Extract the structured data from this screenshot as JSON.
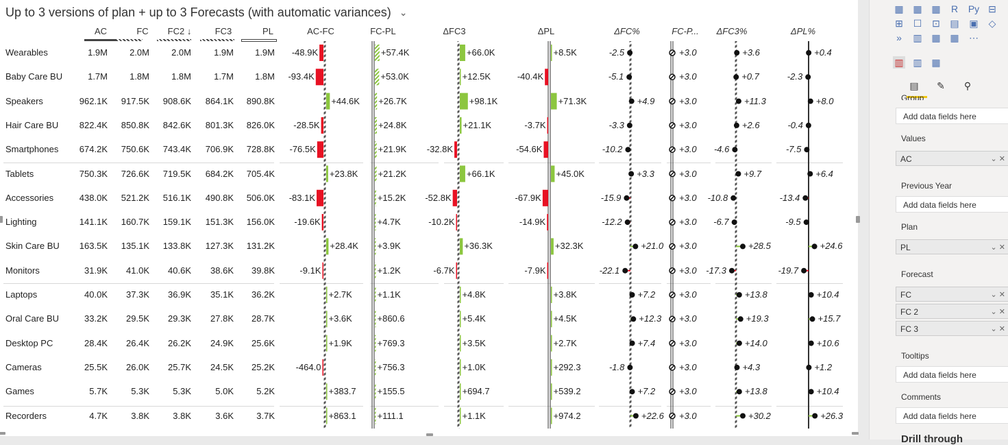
{
  "title": "Up to 3 versions of plan + up to 3 Forecasts (with automatic variances)",
  "columns": {
    "ac": "AC",
    "fc": "FC",
    "fc2": "FC2 ↓",
    "fc3": "FC3",
    "pl": "PL",
    "ac_fc": "AC-FC",
    "fc_pl": "FC-PL",
    "d_fc3": "ΔFC3",
    "d_pl": "ΔPL",
    "d_fc_pct": "ΔFC%",
    "fc_p": "FC-P...",
    "d_fc3_pct": "ΔFC3%",
    "d_pl_pct": "ΔPL%"
  },
  "colors": {
    "positive": "#8cc63f",
    "negative": "#e81123",
    "text": "#222222"
  },
  "rows": [
    {
      "name": "Wearables",
      "ac": "1.9M",
      "fc": "2.0M",
      "fc2": "2.0M",
      "fc3": "1.9M",
      "pl": "1.9M",
      "ac_fc": "-48.9K",
      "ac_fc_v": -48.9,
      "fc_pl": "+57.4K",
      "fc_pl_v": 57.4,
      "d_fc3": "+66.0K",
      "d_fc3_v": 66.0,
      "d_pl": "+8.5K",
      "d_pl_v": 8.5,
      "d_fc_pct": "-2.5",
      "d_fc_pct_v": -2.5,
      "fc_p": "+3.0",
      "d_fc3_pct": "+3.6",
      "d_fc3_pct_v": 3.6,
      "d_pl_pct": "+0.4",
      "d_pl_pct_v": 0.4
    },
    {
      "name": "Baby Care BU",
      "ac": "1.7M",
      "fc": "1.8M",
      "fc2": "1.8M",
      "fc3": "1.7M",
      "pl": "1.8M",
      "ac_fc": "-93.4K",
      "ac_fc_v": -93.4,
      "fc_pl": "+53.0K",
      "fc_pl_v": 53.0,
      "d_fc3": "+12.5K",
      "d_fc3_v": 12.5,
      "d_pl": "-40.4K",
      "d_pl_v": -40.4,
      "d_fc_pct": "-5.1",
      "d_fc_pct_v": -5.1,
      "fc_p": "+3.0",
      "d_fc3_pct": "+0.7",
      "d_fc3_pct_v": 0.7,
      "d_pl_pct": "-2.3",
      "d_pl_pct_v": -2.3
    },
    {
      "name": "Speakers",
      "ac": "962.1K",
      "fc": "917.5K",
      "fc2": "908.6K",
      "fc3": "864.1K",
      "pl": "890.8K",
      "ac_fc": "+44.6K",
      "ac_fc_v": 44.6,
      "fc_pl": "+26.7K",
      "fc_pl_v": 26.7,
      "d_fc3": "+98.1K",
      "d_fc3_v": 98.1,
      "d_pl": "+71.3K",
      "d_pl_v": 71.3,
      "d_fc_pct": "+4.9",
      "d_fc_pct_v": 4.9,
      "fc_p": "+3.0",
      "d_fc3_pct": "+11.3",
      "d_fc3_pct_v": 11.3,
      "d_pl_pct": "+8.0",
      "d_pl_pct_v": 8.0
    },
    {
      "name": "Hair Care BU",
      "ac": "822.4K",
      "fc": "850.8K",
      "fc2": "842.6K",
      "fc3": "801.3K",
      "pl": "826.0K",
      "ac_fc": "-28.5K",
      "ac_fc_v": -28.5,
      "fc_pl": "+24.8K",
      "fc_pl_v": 24.8,
      "d_fc3": "+21.1K",
      "d_fc3_v": 21.1,
      "d_pl": "-3.7K",
      "d_pl_v": -3.7,
      "d_fc_pct": "-3.3",
      "d_fc_pct_v": -3.3,
      "fc_p": "+3.0",
      "d_fc3_pct": "+2.6",
      "d_fc3_pct_v": 2.6,
      "d_pl_pct": "-0.4",
      "d_pl_pct_v": -0.4
    },
    {
      "name": "Smartphones",
      "ac": "674.2K",
      "fc": "750.6K",
      "fc2": "743.4K",
      "fc3": "706.9K",
      "pl": "728.8K",
      "ac_fc": "-76.5K",
      "ac_fc_v": -76.5,
      "fc_pl": "+21.9K",
      "fc_pl_v": 21.9,
      "d_fc3": "-32.8K",
      "d_fc3_v": -32.8,
      "d_pl": "-54.6K",
      "d_pl_v": -54.6,
      "d_fc_pct": "-10.2",
      "d_fc_pct_v": -10.2,
      "fc_p": "+3.0",
      "d_fc3_pct": "-4.6",
      "d_fc3_pct_v": -4.6,
      "d_pl_pct": "-7.5",
      "d_pl_pct_v": -7.5
    },
    {
      "name": "Tablets",
      "ac": "750.3K",
      "fc": "726.6K",
      "fc2": "719.5K",
      "fc3": "684.2K",
      "pl": "705.4K",
      "ac_fc": "+23.8K",
      "ac_fc_v": 23.8,
      "fc_pl": "+21.2K",
      "fc_pl_v": 21.2,
      "d_fc3": "+66.1K",
      "d_fc3_v": 66.1,
      "d_pl": "+45.0K",
      "d_pl_v": 45.0,
      "d_fc_pct": "+3.3",
      "d_fc_pct_v": 3.3,
      "fc_p": "+3.0",
      "d_fc3_pct": "+9.7",
      "d_fc3_pct_v": 9.7,
      "d_pl_pct": "+6.4",
      "d_pl_pct_v": 6.4
    },
    {
      "name": "Accessories",
      "ac": "438.0K",
      "fc": "521.2K",
      "fc2": "516.1K",
      "fc3": "490.8K",
      "pl": "506.0K",
      "ac_fc": "-83.1K",
      "ac_fc_v": -83.1,
      "fc_pl": "+15.2K",
      "fc_pl_v": 15.2,
      "d_fc3": "-52.8K",
      "d_fc3_v": -52.8,
      "d_pl": "-67.9K",
      "d_pl_v": -67.9,
      "d_fc_pct": "-15.9",
      "d_fc_pct_v": -15.9,
      "fc_p": "+3.0",
      "d_fc3_pct": "-10.8",
      "d_fc3_pct_v": -10.8,
      "d_pl_pct": "-13.4",
      "d_pl_pct_v": -13.4
    },
    {
      "name": "Lighting",
      "ac": "141.1K",
      "fc": "160.7K",
      "fc2": "159.1K",
      "fc3": "151.3K",
      "pl": "156.0K",
      "ac_fc": "-19.6K",
      "ac_fc_v": -19.6,
      "fc_pl": "+4.7K",
      "fc_pl_v": 4.7,
      "d_fc3": "-10.2K",
      "d_fc3_v": -10.2,
      "d_pl": "-14.9K",
      "d_pl_v": -14.9,
      "d_fc_pct": "-12.2",
      "d_fc_pct_v": -12.2,
      "fc_p": "+3.0",
      "d_fc3_pct": "-6.7",
      "d_fc3_pct_v": -6.7,
      "d_pl_pct": "-9.5",
      "d_pl_pct_v": -9.5
    },
    {
      "name": "Skin Care BU",
      "ac": "163.5K",
      "fc": "135.1K",
      "fc2": "133.8K",
      "fc3": "127.3K",
      "pl": "131.2K",
      "ac_fc": "+28.4K",
      "ac_fc_v": 28.4,
      "fc_pl": "+3.9K",
      "fc_pl_v": 3.9,
      "d_fc3": "+36.3K",
      "d_fc3_v": 36.3,
      "d_pl": "+32.3K",
      "d_pl_v": 32.3,
      "d_fc_pct": "+21.0",
      "d_fc_pct_v": 21.0,
      "fc_p": "+3.0",
      "d_fc3_pct": "+28.5",
      "d_fc3_pct_v": 28.5,
      "d_pl_pct": "+24.6",
      "d_pl_pct_v": 24.6
    },
    {
      "name": "Monitors",
      "ac": "31.9K",
      "fc": "41.0K",
      "fc2": "40.6K",
      "fc3": "38.6K",
      "pl": "39.8K",
      "ac_fc": "-9.1K",
      "ac_fc_v": -9.1,
      "fc_pl": "+1.2K",
      "fc_pl_v": 1.2,
      "d_fc3": "-6.7K",
      "d_fc3_v": -6.7,
      "d_pl": "-7.9K",
      "d_pl_v": -7.9,
      "d_fc_pct": "-22.1",
      "d_fc_pct_v": -22.1,
      "fc_p": "+3.0",
      "d_fc3_pct": "-17.3",
      "d_fc3_pct_v": -17.3,
      "d_pl_pct": "-19.7",
      "d_pl_pct_v": -19.7
    },
    {
      "name": "Laptops",
      "ac": "40.0K",
      "fc": "37.3K",
      "fc2": "36.9K",
      "fc3": "35.1K",
      "pl": "36.2K",
      "ac_fc": "+2.7K",
      "ac_fc_v": 2.7,
      "fc_pl": "+1.1K",
      "fc_pl_v": 1.1,
      "d_fc3": "+4.8K",
      "d_fc3_v": 4.8,
      "d_pl": "+3.8K",
      "d_pl_v": 3.8,
      "d_fc_pct": "+7.2",
      "d_fc_pct_v": 7.2,
      "fc_p": "+3.0",
      "d_fc3_pct": "+13.8",
      "d_fc3_pct_v": 13.8,
      "d_pl_pct": "+10.4",
      "d_pl_pct_v": 10.4
    },
    {
      "name": "Oral Care BU",
      "ac": "33.2K",
      "fc": "29.5K",
      "fc2": "29.3K",
      "fc3": "27.8K",
      "pl": "28.7K",
      "ac_fc": "+3.6K",
      "ac_fc_v": 3.6,
      "fc_pl": "+860.6",
      "fc_pl_v": 0.86,
      "d_fc3": "+5.4K",
      "d_fc3_v": 5.4,
      "d_pl": "+4.5K",
      "d_pl_v": 4.5,
      "d_fc_pct": "+12.3",
      "d_fc_pct_v": 12.3,
      "fc_p": "+3.0",
      "d_fc3_pct": "+19.3",
      "d_fc3_pct_v": 19.3,
      "d_pl_pct": "+15.7",
      "d_pl_pct_v": 15.7
    },
    {
      "name": "Desktop PC",
      "ac": "28.4K",
      "fc": "26.4K",
      "fc2": "26.2K",
      "fc3": "24.9K",
      "pl": "25.6K",
      "ac_fc": "+1.9K",
      "ac_fc_v": 1.9,
      "fc_pl": "+769.3",
      "fc_pl_v": 0.77,
      "d_fc3": "+3.5K",
      "d_fc3_v": 3.5,
      "d_pl": "+2.7K",
      "d_pl_v": 2.7,
      "d_fc_pct": "+7.4",
      "d_fc_pct_v": 7.4,
      "fc_p": "+3.0",
      "d_fc3_pct": "+14.0",
      "d_fc3_pct_v": 14.0,
      "d_pl_pct": "+10.6",
      "d_pl_pct_v": 10.6
    },
    {
      "name": "Cameras",
      "ac": "25.5K",
      "fc": "26.0K",
      "fc2": "25.7K",
      "fc3": "24.5K",
      "pl": "25.2K",
      "ac_fc": "-464.0",
      "ac_fc_v": -0.46,
      "fc_pl": "+756.3",
      "fc_pl_v": 0.76,
      "d_fc3": "+1.0K",
      "d_fc3_v": 1.0,
      "d_pl": "+292.3",
      "d_pl_v": 0.29,
      "d_fc_pct": "-1.8",
      "d_fc_pct_v": -1.8,
      "fc_p": "+3.0",
      "d_fc3_pct": "+4.3",
      "d_fc3_pct_v": 4.3,
      "d_pl_pct": "+1.2",
      "d_pl_pct_v": 1.2
    },
    {
      "name": "Games",
      "ac": "5.7K",
      "fc": "5.3K",
      "fc2": "5.3K",
      "fc3": "5.0K",
      "pl": "5.2K",
      "ac_fc": "+383.7",
      "ac_fc_v": 0.38,
      "fc_pl": "+155.5",
      "fc_pl_v": 0.16,
      "d_fc3": "+694.7",
      "d_fc3_v": 0.69,
      "d_pl": "+539.2",
      "d_pl_v": 0.54,
      "d_fc_pct": "+7.2",
      "d_fc_pct_v": 7.2,
      "fc_p": "+3.0",
      "d_fc3_pct": "+13.8",
      "d_fc3_pct_v": 13.8,
      "d_pl_pct": "+10.4",
      "d_pl_pct_v": 10.4
    },
    {
      "name": "Recorders",
      "ac": "4.7K",
      "fc": "3.8K",
      "fc2": "3.8K",
      "fc3": "3.6K",
      "pl": "3.7K",
      "ac_fc": "+863.1",
      "ac_fc_v": 0.86,
      "fc_pl": "+111.1",
      "fc_pl_v": 0.11,
      "d_fc3": "+1.1K",
      "d_fc3_v": 1.1,
      "d_pl": "+974.2",
      "d_pl_v": 0.97,
      "d_fc_pct": "+22.6",
      "d_fc_pct_v": 22.6,
      "fc_p": "+3.0",
      "d_fc3_pct": "+30.2",
      "d_fc3_pct_v": 30.2,
      "d_pl_pct": "+26.3",
      "d_pl_pct_v": 26.3
    }
  ],
  "pane": {
    "icons": [
      "table-icon",
      "matrix-icon",
      "r-visual-icon",
      "python-visual-icon",
      "key-influencers-icon",
      "decomposition-tree-icon",
      "qa-icon",
      "smart-narrative-icon",
      "paginated-report-icon",
      "power-apps-icon",
      "power-automate-icon",
      "more-visuals-icon",
      "zebra-bi-tables-icon",
      "zebra-bi-charts-icon",
      "zebra-bi-cards-icon"
    ],
    "tabs": [
      "fields-tab-icon",
      "format-tab-icon",
      "analytics-tab-icon"
    ],
    "group_label": "Group",
    "placeholder": "Add data fields here",
    "values_label": "Values",
    "values_field": "AC",
    "prev_year_label": "Previous Year",
    "plan_label": "Plan",
    "plan_field": "PL",
    "forecast_label": "Forecast",
    "forecast_fields": [
      "FC",
      "FC 2",
      "FC 3"
    ],
    "tooltips_label": "Tooltips",
    "comments_label": "Comments",
    "drill_label": "Drill through"
  }
}
